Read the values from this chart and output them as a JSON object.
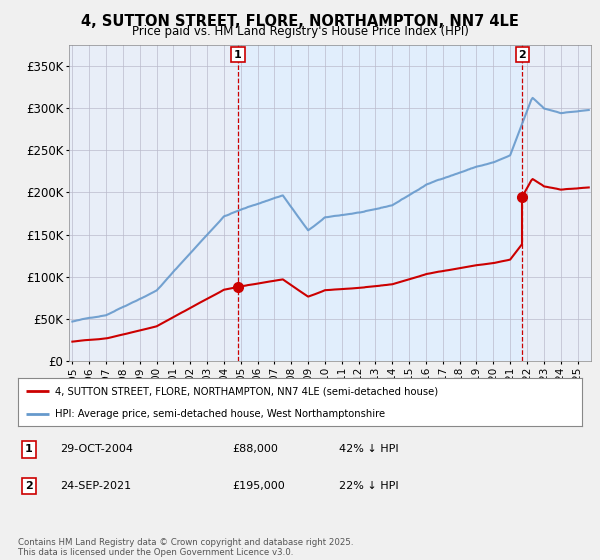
{
  "title": "4, SUTTON STREET, FLORE, NORTHAMPTON, NN7 4LE",
  "subtitle": "Price paid vs. HM Land Registry's House Price Index (HPI)",
  "hpi_label": "HPI: Average price, semi-detached house, West Northamptonshire",
  "property_label": "4, SUTTON STREET, FLORE, NORTHAMPTON, NN7 4LE (semi-detached house)",
  "footer": "Contains HM Land Registry data © Crown copyright and database right 2025.\nThis data is licensed under the Open Government Licence v3.0.",
  "annotation1": {
    "num": "1",
    "date": "29-OCT-2004",
    "price": "£88,000",
    "hpi": "42% ↓ HPI",
    "x": 2004.83
  },
  "annotation2": {
    "num": "2",
    "date": "24-SEP-2021",
    "price": "£195,000",
    "hpi": "22% ↓ HPI",
    "x": 2021.72
  },
  "sale1_value": 88000,
  "sale2_value": 195000,
  "sale1_year": 2004.83,
  "sale2_year": 2021.72,
  "property_color": "#cc0000",
  "hpi_color": "#6699cc",
  "hpi_fill_color": "#ddeeff",
  "background_color": "#f0f0f0",
  "plot_bg_color": "#e8eef8",
  "ylim": [
    0,
    375000
  ],
  "xlim": [
    1994.8,
    2025.8
  ],
  "yticks": [
    0,
    50000,
    100000,
    150000,
    200000,
    250000,
    300000,
    350000
  ],
  "ytick_labels": [
    "£0",
    "£50K",
    "£100K",
    "£150K",
    "£200K",
    "£250K",
    "£300K",
    "£350K"
  ]
}
